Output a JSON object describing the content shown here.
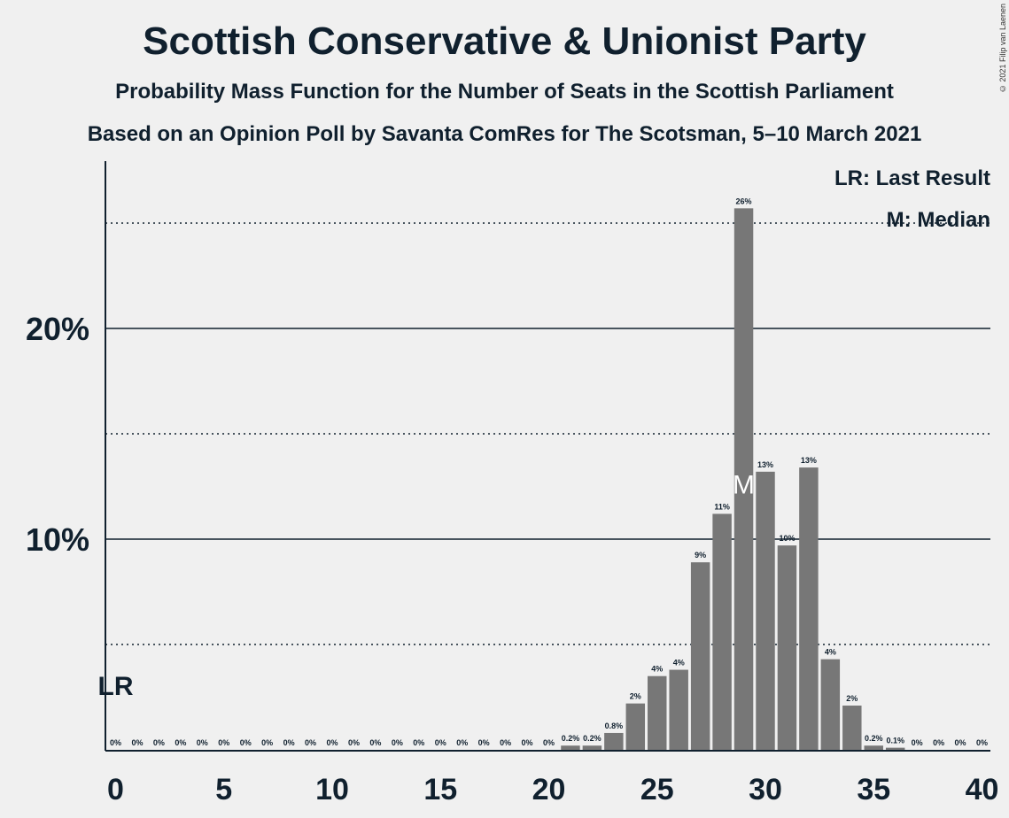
{
  "header": {
    "title": "Scottish Conservative & Unionist Party",
    "subtitle": "Probability Mass Function for the Number of Seats in the Scottish Parliament",
    "subtitle2": "Based on an Opinion Poll by Savanta ComRes for The Scotsman, 5–10 March 2021",
    "credit": "© 2021 Filip van Laenen"
  },
  "legend": {
    "lr": "LR: Last Result",
    "median": "M: Median"
  },
  "chart_data": {
    "type": "bar",
    "x": [
      0,
      1,
      2,
      3,
      4,
      5,
      6,
      7,
      8,
      9,
      10,
      11,
      12,
      13,
      14,
      15,
      16,
      17,
      18,
      19,
      20,
      21,
      22,
      23,
      24,
      25,
      26,
      27,
      28,
      29,
      30,
      31,
      32,
      33,
      34,
      35,
      36,
      37,
      38,
      39,
      40
    ],
    "values": [
      0,
      0,
      0,
      0,
      0,
      0,
      0,
      0,
      0,
      0,
      0,
      0,
      0,
      0,
      0,
      0,
      0,
      0,
      0,
      0,
      0,
      0.2,
      0.2,
      0.8,
      2.2,
      3.5,
      3.8,
      8.9,
      11.2,
      25.7,
      13.2,
      9.7,
      13.4,
      4.3,
      2.1,
      0.2,
      0.1,
      0,
      0,
      0,
      0
    ],
    "labels": [
      "0%",
      "0%",
      "0%",
      "0%",
      "0%",
      "0%",
      "0%",
      "0%",
      "0%",
      "0%",
      "0%",
      "0%",
      "0%",
      "0%",
      "0%",
      "0%",
      "0%",
      "0%",
      "0%",
      "0%",
      "0%",
      "0.2%",
      "0.2%",
      "0.8%",
      "2%",
      "4%",
      "4%",
      "9%",
      "11%",
      "26%",
      "13%",
      "10%",
      "13%",
      "4%",
      "2%",
      "0.2%",
      "0.1%",
      "0%",
      "0%",
      "0%",
      "0%"
    ],
    "x_ticks": [
      "0",
      "5",
      "10",
      "15",
      "20",
      "25",
      "30",
      "35",
      "40"
    ],
    "y_ticks": [
      "10%",
      "20%"
    ],
    "ylim": [
      0,
      28
    ],
    "solid_gridlines": [
      10,
      20
    ],
    "dotted_gridlines": [
      5,
      15,
      25
    ],
    "last_result_seat": 0,
    "last_result_label": "LR",
    "median_seat": 29,
    "median_label": "M",
    "bar_color": "#777777",
    "text_color": "#10202e"
  }
}
